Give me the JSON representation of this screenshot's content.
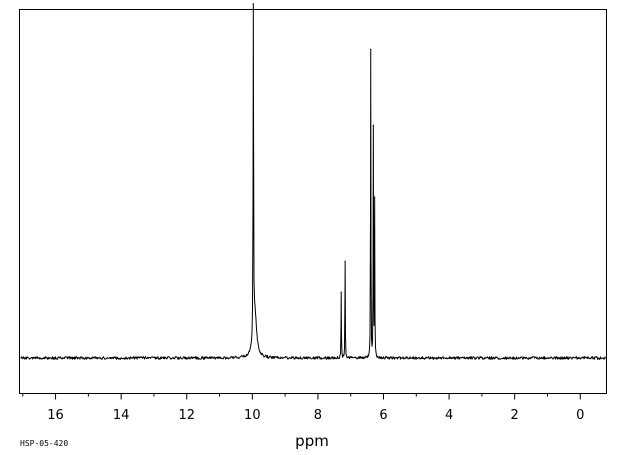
{
  "chart_data": {
    "type": "line",
    "title": "",
    "xlabel": "ppm",
    "ylabel": "",
    "footer_code": "HSP-05-420",
    "x_reversed": true,
    "xlim": [
      17.1,
      -0.8
    ],
    "ylim": [
      0,
      1.0
    ],
    "baseline": 0.02,
    "noise": 0.004,
    "grid": false,
    "ticks": [
      {
        "value": 16,
        "label": "16"
      },
      {
        "value": 14,
        "label": "14"
      },
      {
        "value": 12,
        "label": "12"
      },
      {
        "value": 10,
        "label": "10"
      },
      {
        "value": 8,
        "label": "8"
      },
      {
        "value": 6,
        "label": "6"
      },
      {
        "value": 4,
        "label": "4"
      },
      {
        "value": 2,
        "label": "2"
      },
      {
        "value": 0,
        "label": "0"
      }
    ],
    "minor_ticks": [
      17,
      15,
      13,
      11,
      9,
      7,
      5,
      3,
      1,
      -1
    ],
    "peaks": [
      {
        "ppm": 9.97,
        "height": 0.95,
        "width": 0.008
      },
      {
        "ppm": 9.92,
        "height": 0.13,
        "width": 0.06
      },
      {
        "ppm": 7.29,
        "height": 0.19,
        "width": 0.006
      },
      {
        "ppm": 7.17,
        "height": 0.28,
        "width": 0.006
      },
      {
        "ppm": 6.39,
        "height": 0.89,
        "width": 0.006
      },
      {
        "ppm": 6.31,
        "height": 0.66,
        "width": 0.006
      },
      {
        "ppm": 6.27,
        "height": 0.45,
        "width": 0.006
      }
    ]
  }
}
